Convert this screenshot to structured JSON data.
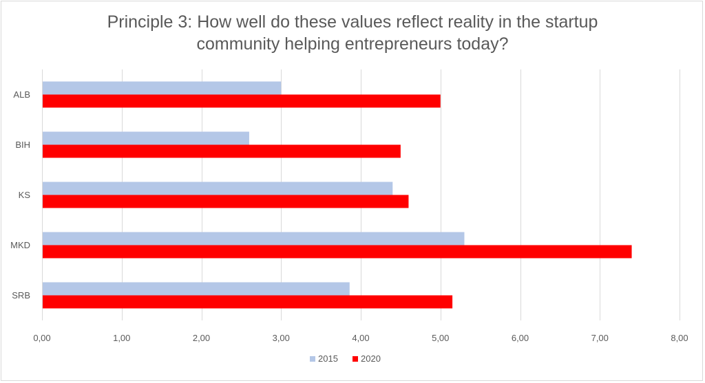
{
  "chart_data": {
    "type": "bar",
    "orientation": "horizontal",
    "title_lines": [
      "Principle 3: How well do these values reflect reality in the startup",
      "community helping entrepreneurs today?"
    ],
    "categories": [
      "ALB",
      "BIH",
      "KS",
      "MKD",
      "SRB"
    ],
    "series": [
      {
        "name": "2015",
        "color": "#b4c7e7",
        "values": [
          3.0,
          2.6,
          4.4,
          5.3,
          3.86
        ]
      },
      {
        "name": "2020",
        "color": "#ff0000",
        "values": [
          5.0,
          4.5,
          4.6,
          7.4,
          5.15
        ]
      }
    ],
    "xlim": [
      0,
      8
    ],
    "xticks": [
      "0,00",
      "1,00",
      "2,00",
      "3,00",
      "4,00",
      "5,00",
      "6,00",
      "7,00",
      "8,00"
    ],
    "xtick_values": [
      0,
      1,
      2,
      3,
      4,
      5,
      6,
      7,
      8
    ],
    "grid": "vertical",
    "legend": "bottom-center",
    "xlabel": "",
    "ylabel": ""
  }
}
